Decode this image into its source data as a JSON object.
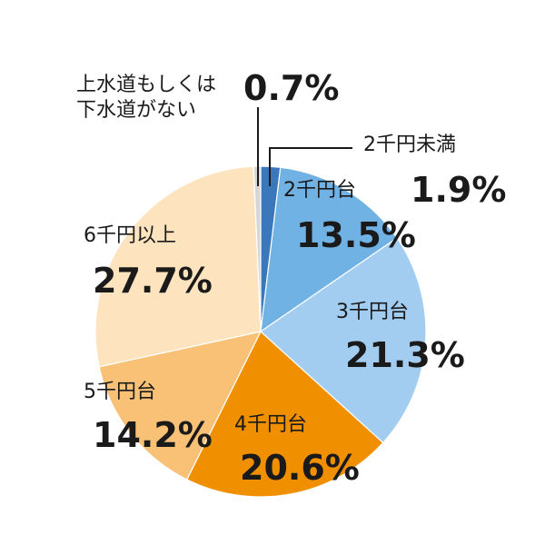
{
  "chart_data": {
    "type": "pie",
    "title": "",
    "start_angle_deg": -2.5,
    "direction": "clockwise",
    "slices": [
      {
        "label_line1": "上水道もしくは",
        "label_line2": "下水道がない",
        "value": 0.7,
        "value_label": "0.7%",
        "color": "#d6d6d6"
      },
      {
        "label_line1": "2千円未満",
        "value": 1.9,
        "value_label": "1.9%",
        "color": "#3a78bb"
      },
      {
        "label_line1": "2千円台",
        "value": 13.5,
        "value_label": "13.5%",
        "color": "#71b2e4"
      },
      {
        "label_line1": "3千円台",
        "value": 21.3,
        "value_label": "21.3%",
        "color": "#a3cdf0"
      },
      {
        "label_line1": "4千円台",
        "value": 20.6,
        "value_label": "20.6%",
        "color": "#f09000"
      },
      {
        "label_line1": "5千円台",
        "value": 14.2,
        "value_label": "14.2%",
        "color": "#f8c176"
      },
      {
        "label_line1": "6千円以上",
        "value": 27.7,
        "value_label": "27.7%",
        "color": "#fde4bf"
      }
    ]
  }
}
